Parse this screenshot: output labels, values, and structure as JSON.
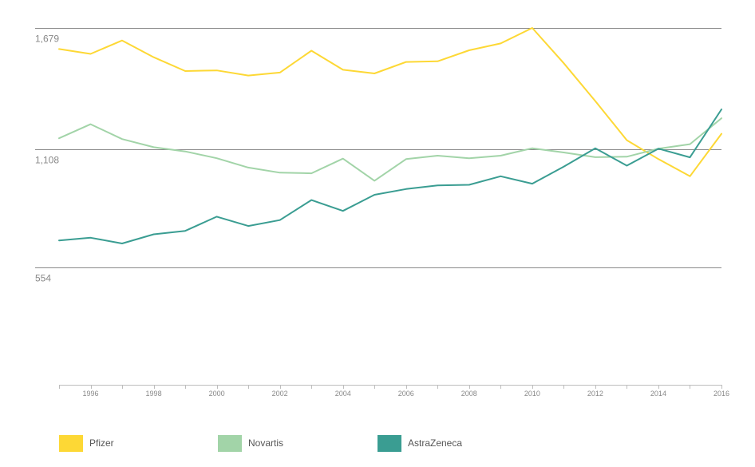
{
  "chart_data": {
    "type": "line",
    "x": [
      1995,
      1996,
      1997,
      1998,
      1999,
      2000,
      2001,
      2002,
      2003,
      2004,
      2005,
      2006,
      2007,
      2008,
      2009,
      2010,
      2011,
      2012,
      2013,
      2014,
      2015,
      2016
    ],
    "x_tick_labels": [
      "1996",
      "1998",
      "2000",
      "2002",
      "2004",
      "2006",
      "2008",
      "2010",
      "2012",
      "2014",
      "2016"
    ],
    "y_tick_labels": [
      "1,679",
      "1,108",
      "554"
    ],
    "y_tick_values": [
      1679,
      1108,
      554
    ],
    "ylim": [
      0,
      1679
    ],
    "xlim": [
      1995,
      2016
    ],
    "grid": "horizontal",
    "legend_position": "bottom",
    "series": [
      {
        "name": "Pfizer",
        "color": "#fdd835",
        "values": [
          1580,
          1557,
          1620,
          1541,
          1476,
          1479,
          1455,
          1469,
          1572,
          1482,
          1465,
          1519,
          1522,
          1574,
          1606,
          1679,
          1513,
          1335,
          1151,
          1062,
          981,
          1181
        ]
      },
      {
        "name": "Novartis",
        "color": "#a2d4a8",
        "values": [
          1160,
          1226,
          1156,
          1118,
          1098,
          1066,
          1022,
          998,
          995,
          1064,
          960,
          1062,
          1078,
          1066,
          1078,
          1113,
          1093,
          1071,
          1073,
          1111,
          1132,
          1254
        ]
      },
      {
        "name": "AstraZeneca",
        "color": "#3a9d92",
        "values": [
          679,
          692,
          665,
          708,
          724,
          791,
          747,
          775,
          869,
          818,
          894,
          921,
          938,
          941,
          981,
          946,
          1026,
          1113,
          1031,
          1111,
          1070,
          1296
        ]
      }
    ]
  }
}
